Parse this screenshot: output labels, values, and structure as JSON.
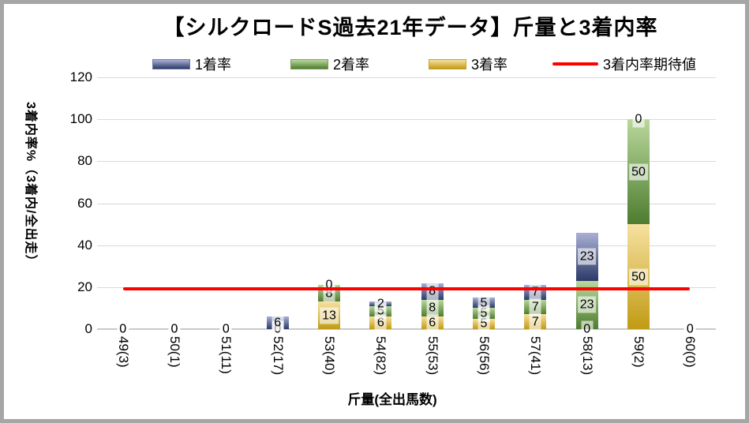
{
  "title": "【シルクロードS過去21年データ】斤量と3着内率",
  "legend": {
    "items": [
      {
        "label": "1着率",
        "type": "bar",
        "series": "1着率"
      },
      {
        "label": "2着率",
        "type": "bar",
        "series": "2着率"
      },
      {
        "label": "3着率",
        "type": "bar",
        "series": "3着率"
      },
      {
        "label": "3着内率期待値",
        "type": "line",
        "series": "expected"
      }
    ]
  },
  "colors": {
    "1着率": {
      "top": "#a9b0d4",
      "bottom": "#2b3a69",
      "border": "#6f77a6"
    },
    "2着率": {
      "top": "#b9d89c",
      "bottom": "#4e7c30",
      "border": "#79a457"
    },
    "3着率": {
      "top": "#f7e1a0",
      "bottom": "#c19b14",
      "border": "#c7a22a"
    },
    "expected": "#ff0000",
    "gridline": "#d9d9d9",
    "frame_border": "#a6a6a6"
  },
  "chart_data": {
    "type": "bar",
    "stacked": true,
    "title": "【シルクロードS過去21年データ】斤量と3着内率",
    "xlabel": "斤量(全出馬数)",
    "ylabel": "3着内率%（3着内/全出走）",
    "ylim": [
      0,
      120
    ],
    "yticks": [
      0,
      20,
      40,
      60,
      80,
      100,
      120
    ],
    "grid": true,
    "legend_position": "top",
    "categories": [
      "49(3)",
      "50(1)",
      "51(11)",
      "52(17)",
      "53(40)",
      "54(82)",
      "55(53)",
      "56(56)",
      "57(41)",
      "58(13)",
      "59(2)",
      "60(0)"
    ],
    "series": [
      {
        "name": "1着率",
        "values": [
          0,
          0,
          0,
          6,
          0,
          2,
          8,
          5,
          7,
          23,
          0,
          0
        ]
      },
      {
        "name": "2着率",
        "values": [
          0,
          0,
          0,
          0,
          8,
          5,
          8,
          5,
          7,
          23,
          50,
          0
        ]
      },
      {
        "name": "3着率",
        "values": [
          0,
          0,
          0,
          0,
          13,
          6,
          6,
          5,
          7,
          0,
          50,
          0
        ]
      }
    ],
    "stack_order_bottom_to_top": [
      "3着率",
      "2着率",
      "1着率"
    ],
    "expected_line": {
      "name": "3着内率期待値",
      "value": 19
    }
  }
}
